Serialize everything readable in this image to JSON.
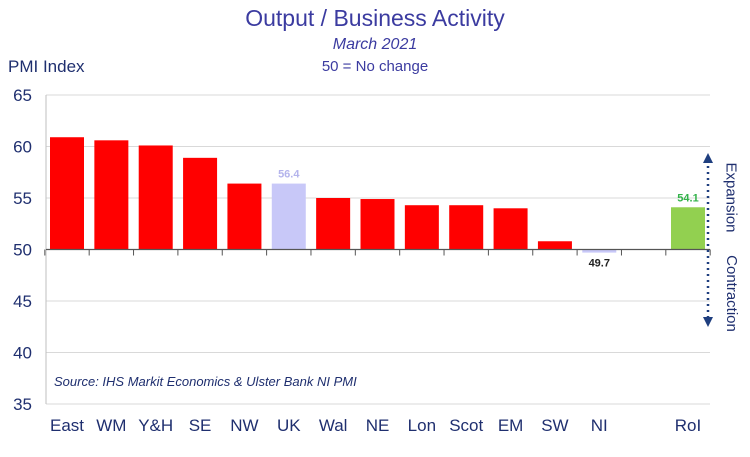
{
  "title": "Output / Business Activity",
  "subtitle": "March 2021",
  "note": "50 = No change",
  "ylabel": "PMI Index",
  "source": "Source: IHS Markit Economics & Ulster Bank NI PMI",
  "side_labels": {
    "upper": "Expansion",
    "lower": "Contraction"
  },
  "colors": {
    "title": "#3b3ba0",
    "red": "#ff0000",
    "uk": "#c8c8f8",
    "ni": "#c8c8f8",
    "roi": "#92d050",
    "label_green": "#33b34a"
  },
  "chart_data": {
    "type": "bar",
    "categories": [
      "East",
      "WM",
      "Y&H",
      "SE",
      "NW",
      "UK",
      "Wal",
      "NE",
      "Lon",
      "Scot",
      "EM",
      "SW",
      "NI",
      "",
      "RoI"
    ],
    "values": [
      60.9,
      60.6,
      60.1,
      58.9,
      56.4,
      56.4,
      55.0,
      54.9,
      54.3,
      54.3,
      54.0,
      50.8,
      49.7,
      null,
      54.1
    ],
    "bar_colors": [
      "red",
      "red",
      "red",
      "red",
      "red",
      "uk",
      "red",
      "red",
      "red",
      "red",
      "red",
      "red",
      "ni",
      null,
      "roi"
    ],
    "data_labels": {
      "UK": "56.4",
      "NI": "49.7",
      "RoI": "54.1"
    },
    "ylim": [
      35,
      65
    ],
    "yticks": [
      35,
      40,
      45,
      50,
      55,
      60,
      65
    ],
    "baseline": 50,
    "grid": true
  }
}
